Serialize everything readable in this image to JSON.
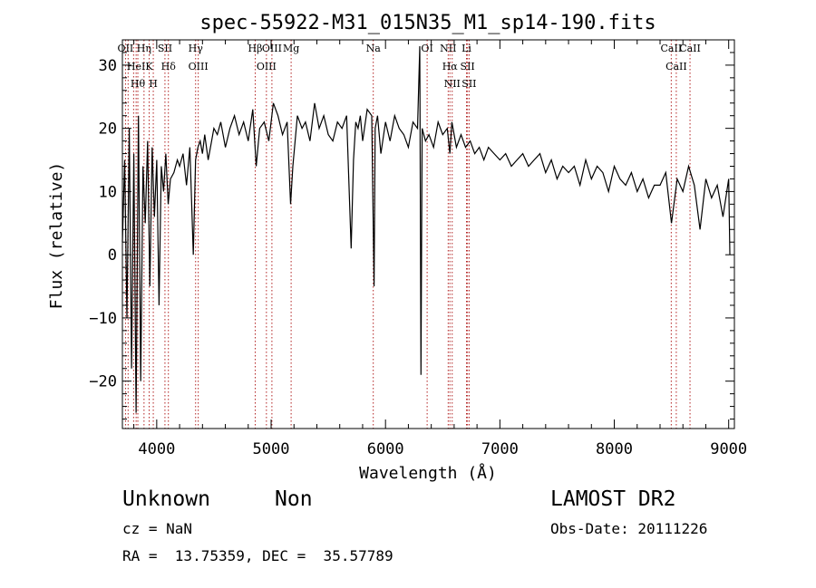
{
  "chart_data": {
    "type": "line",
    "title": "spec-55922-M31_015N35_M1_sp14-190.fits",
    "xlabel": "Wavelength (Å)",
    "ylabel": "Flux (relative)",
    "xlim": [
      3700,
      9050
    ],
    "ylim": [
      -27.5,
      34
    ],
    "x_ticks": [
      4000,
      5000,
      6000,
      7000,
      8000,
      9000
    ],
    "y_ticks": [
      -20,
      -10,
      0,
      10,
      20,
      30
    ],
    "x_minor_step": 200,
    "y_minor_step": 2,
    "line_color": "#000000",
    "marker_color": "#b22222",
    "series": [
      {
        "x": [
          3700,
          3720,
          3740,
          3760,
          3780,
          3800,
          3820,
          3840,
          3860,
          3880,
          3900,
          3920,
          3940,
          3960,
          3980,
          4000,
          4020,
          4040,
          4060,
          4080,
          4100,
          4120,
          4150,
          4180,
          4200,
          4230,
          4260,
          4290,
          4320,
          4340,
          4360,
          4380,
          4400,
          4420,
          4450,
          4480,
          4500,
          4530,
          4560,
          4600,
          4640,
          4680,
          4720,
          4760,
          4800,
          4840,
          4870,
          4900,
          4940,
          4980,
          5020,
          5060,
          5100,
          5140,
          5170,
          5190,
          5230,
          5270,
          5300,
          5340,
          5380,
          5420,
          5460,
          5500,
          5540,
          5580,
          5620,
          5660,
          5700,
          5720,
          5740,
          5760,
          5780,
          5800,
          5840,
          5880,
          5900,
          5910,
          5930,
          5960,
          6000,
          6040,
          6080,
          6120,
          6160,
          6200,
          6240,
          6280,
          6300,
          6310,
          6320,
          6350,
          6380,
          6420,
          6460,
          6500,
          6540,
          6563,
          6580,
          6620,
          6660,
          6700,
          6740,
          6780,
          6820,
          6860,
          6900,
          6950,
          7000,
          7050,
          7100,
          7150,
          7200,
          7250,
          7300,
          7350,
          7400,
          7450,
          7500,
          7550,
          7600,
          7650,
          7700,
          7750,
          7800,
          7850,
          7900,
          7950,
          8000,
          8050,
          8100,
          8150,
          8200,
          8250,
          8300,
          8350,
          8400,
          8450,
          8500,
          8550,
          8600,
          8650,
          8700,
          8750,
          8800,
          8850,
          8900,
          8950,
          9000,
          9010
        ],
        "y": [
          2,
          15,
          -10,
          20,
          -18,
          16,
          -25,
          22,
          -20,
          14,
          5,
          18,
          -5,
          17,
          6,
          15,
          -8,
          14,
          10,
          16,
          8,
          12,
          13,
          15,
          14,
          16,
          11,
          17,
          0,
          15,
          17,
          18,
          16,
          19,
          15,
          18,
          20,
          19,
          21,
          17,
          20,
          22,
          19,
          21,
          18,
          23,
          14,
          20,
          21,
          18,
          24,
          22,
          19,
          21,
          8,
          14,
          22,
          20,
          21,
          18,
          24,
          20,
          22,
          19,
          18,
          21,
          20,
          22,
          1,
          15,
          21,
          20,
          22,
          18,
          23,
          22,
          -5,
          20,
          22,
          16,
          21,
          18,
          22,
          20,
          19,
          17,
          21,
          20,
          33,
          -19,
          20,
          18,
          19,
          17,
          21,
          19,
          20,
          16,
          21,
          17,
          19,
          17,
          18,
          16,
          17,
          15,
          17,
          16,
          15,
          16,
          14,
          15,
          16,
          14,
          15,
          16,
          13,
          15,
          12,
          14,
          13,
          14,
          11,
          15,
          12,
          14,
          13,
          10,
          14,
          12,
          11,
          13,
          10,
          12,
          9,
          11,
          11,
          13,
          5,
          12,
          10,
          14,
          11,
          4,
          12,
          9,
          11,
          6,
          12,
          0
        ]
      }
    ],
    "line_markers": [
      {
        "x": 3727,
        "label": "OII"
      },
      {
        "x": 3750,
        "label": ""
      },
      {
        "x": 3798,
        "label": ""
      },
      {
        "x": 3820,
        "label": "HeI"
      },
      {
        "x": 3835,
        "label": "Hθ"
      },
      {
        "x": 3889,
        "label": "Hη"
      },
      {
        "x": 3934,
        "label": "K"
      },
      {
        "x": 3970,
        "label": "H"
      },
      {
        "x": 4072,
        "label": "SII"
      },
      {
        "x": 4102,
        "label": "Hδ"
      },
      {
        "x": 4340,
        "label": "Hγ"
      },
      {
        "x": 4363,
        "label": "OIII"
      },
      {
        "x": 4861,
        "label": "Hβ"
      },
      {
        "x": 4959,
        "label": "OIII"
      },
      {
        "x": 5007,
        "label": "OIII"
      },
      {
        "x": 5175,
        "label": "Mg"
      },
      {
        "x": 5893,
        "label": "Na"
      },
      {
        "x": 6364,
        "label": "OI"
      },
      {
        "x": 6548,
        "label": "NII"
      },
      {
        "x": 6563,
        "label": "Hα"
      },
      {
        "x": 6583,
        "label": "NII"
      },
      {
        "x": 6708,
        "label": "Li"
      },
      {
        "x": 6717,
        "label": "SII"
      },
      {
        "x": 6731,
        "label": "SII"
      },
      {
        "x": 8498,
        "label": "CaII"
      },
      {
        "x": 8542,
        "label": "CaII"
      },
      {
        "x": 8662,
        "label": "CaII"
      }
    ]
  },
  "info": {
    "class": "Unknown",
    "subclass": "Non",
    "survey": "LAMOST DR2",
    "cz": "cz = NaN",
    "obs_date": "Obs-Date: 20111226",
    "radec": "RA =  13.75359, DEC =  35.57789"
  }
}
